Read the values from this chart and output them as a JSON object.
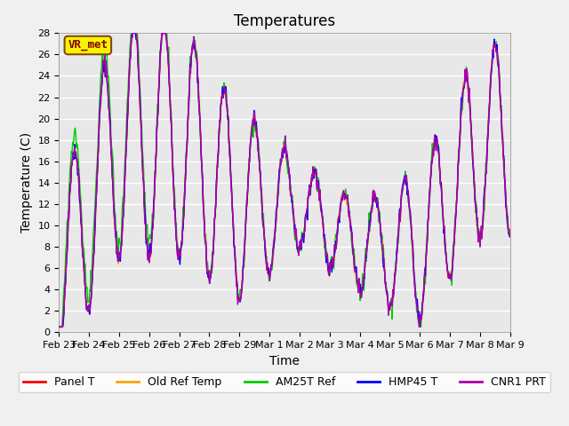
{
  "title": "Temperatures",
  "xlabel": "Time",
  "ylabel": "Temperature (C)",
  "ylim": [
    0,
    28
  ],
  "xlim_days": 15.5,
  "background_color": "#e8e8e8",
  "grid_color": "#ffffff",
  "annotation_text": "VR_met",
  "annotation_bg": "#f5f500",
  "annotation_border": "#8b4513",
  "annotation_text_color": "#8b0000",
  "series": {
    "Panel T": {
      "color": "#ff0000",
      "zorder": 3
    },
    "Old Ref Temp": {
      "color": "#ffa500",
      "zorder": 3
    },
    "AM25T Ref": {
      "color": "#00cc00",
      "zorder": 3
    },
    "HMP45 T": {
      "color": "#0000ff",
      "zorder": 3
    },
    "CNR1 PRT": {
      "color": "#aa00aa",
      "zorder": 3
    }
  },
  "x_tick_labels": [
    "Feb 23",
    "Feb 24",
    "Feb 25",
    "Feb 26",
    "Feb 27",
    "Feb 28",
    "Feb 29",
    "Mar 1",
    "Mar 2",
    "Mar 3",
    "Mar 4",
    "Mar 5",
    "Mar 6",
    "Mar 7",
    "Mar 8",
    "Mar 9"
  ],
  "title_fontsize": 12,
  "axis_label_fontsize": 10,
  "tick_fontsize": 8,
  "legend_fontsize": 9
}
